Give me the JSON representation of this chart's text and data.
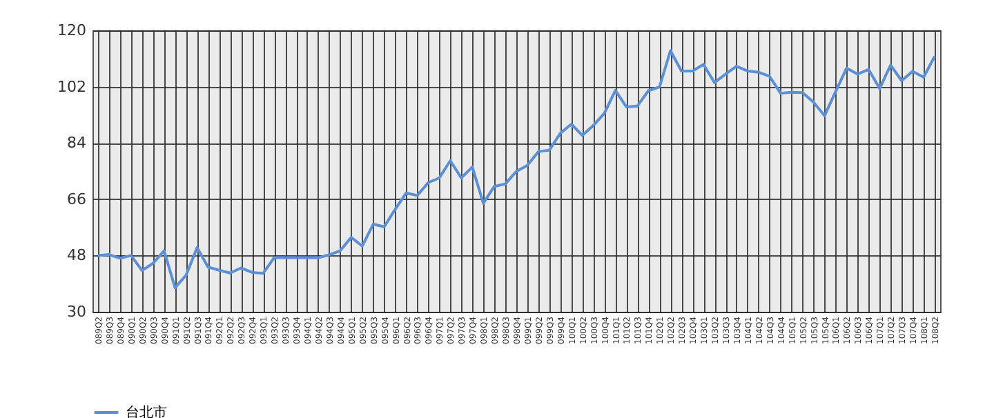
{
  "chart_data": {
    "type": "line",
    "categories": [
      "089Q2",
      "089Q3",
      "089Q4",
      "090Q1",
      "090Q2",
      "090Q3",
      "090Q4",
      "091Q1",
      "091Q2",
      "091Q3",
      "091Q4",
      "092Q1",
      "092Q2",
      "092Q3",
      "092Q4",
      "093Q1",
      "093Q2",
      "093Q3",
      "093Q4",
      "094Q1",
      "094Q2",
      "094Q3",
      "094Q4",
      "095Q1",
      "095Q2",
      "095Q3",
      "095Q4",
      "096Q1",
      "096Q2",
      "096Q3",
      "096Q4",
      "097Q1",
      "097Q2",
      "097Q3",
      "097Q4",
      "098Q1",
      "098Q2",
      "098Q3",
      "098Q4",
      "099Q1",
      "099Q2",
      "099Q3",
      "099Q4",
      "100Q1",
      "100Q2",
      "100Q3",
      "100Q4",
      "101Q1",
      "101Q2",
      "101Q3",
      "101Q4",
      "102Q1",
      "102Q2",
      "102Q3",
      "102Q4",
      "103Q1",
      "103Q2",
      "103Q3",
      "103Q4",
      "104Q1",
      "104Q2",
      "104Q3",
      "104Q4",
      "105Q1",
      "105Q2",
      "105Q3",
      "105Q4",
      "106Q1",
      "106Q2",
      "106Q3",
      "106Q4",
      "107Q1",
      "107Q2",
      "107Q3",
      "107Q4",
      "108Q1",
      "108Q2"
    ],
    "series": [
      {
        "name": "台北市",
        "color": "#5b8fd6",
        "values": [
          48,
          48.3,
          47.1,
          48,
          43.2,
          45.5,
          49.5,
          37.7,
          41.7,
          50.5,
          44.3,
          43.3,
          42.4,
          44,
          42.6,
          42.3,
          47.3,
          47.3,
          47.3,
          47.3,
          47.3,
          48.2,
          49.5,
          53.8,
          51,
          58,
          57.2,
          62.8,
          68,
          67.2,
          71.3,
          72.8,
          78.3,
          72.8,
          76.3,
          64.7,
          70.1,
          70.9,
          74.9,
          76.8,
          81.2,
          81.7,
          87.1,
          90,
          86.4,
          89.6,
          93.5,
          100.8,
          95.5,
          95.8,
          100.7,
          101.9,
          113.5,
          107,
          107,
          109.1,
          103.3,
          106,
          108.5,
          107,
          106.6,
          105.3,
          99.9,
          100.2,
          100.1,
          97,
          92.7,
          100.4,
          107.9,
          106,
          107.5,
          101.4,
          108.9,
          103.9,
          106.9,
          105,
          111.7
        ]
      }
    ],
    "ylim": [
      30,
      120
    ],
    "yticks": [
      30,
      48,
      66,
      84,
      102,
      120
    ],
    "grid": true,
    "legend": "bottom",
    "marker": "none",
    "line_style": "solid"
  }
}
